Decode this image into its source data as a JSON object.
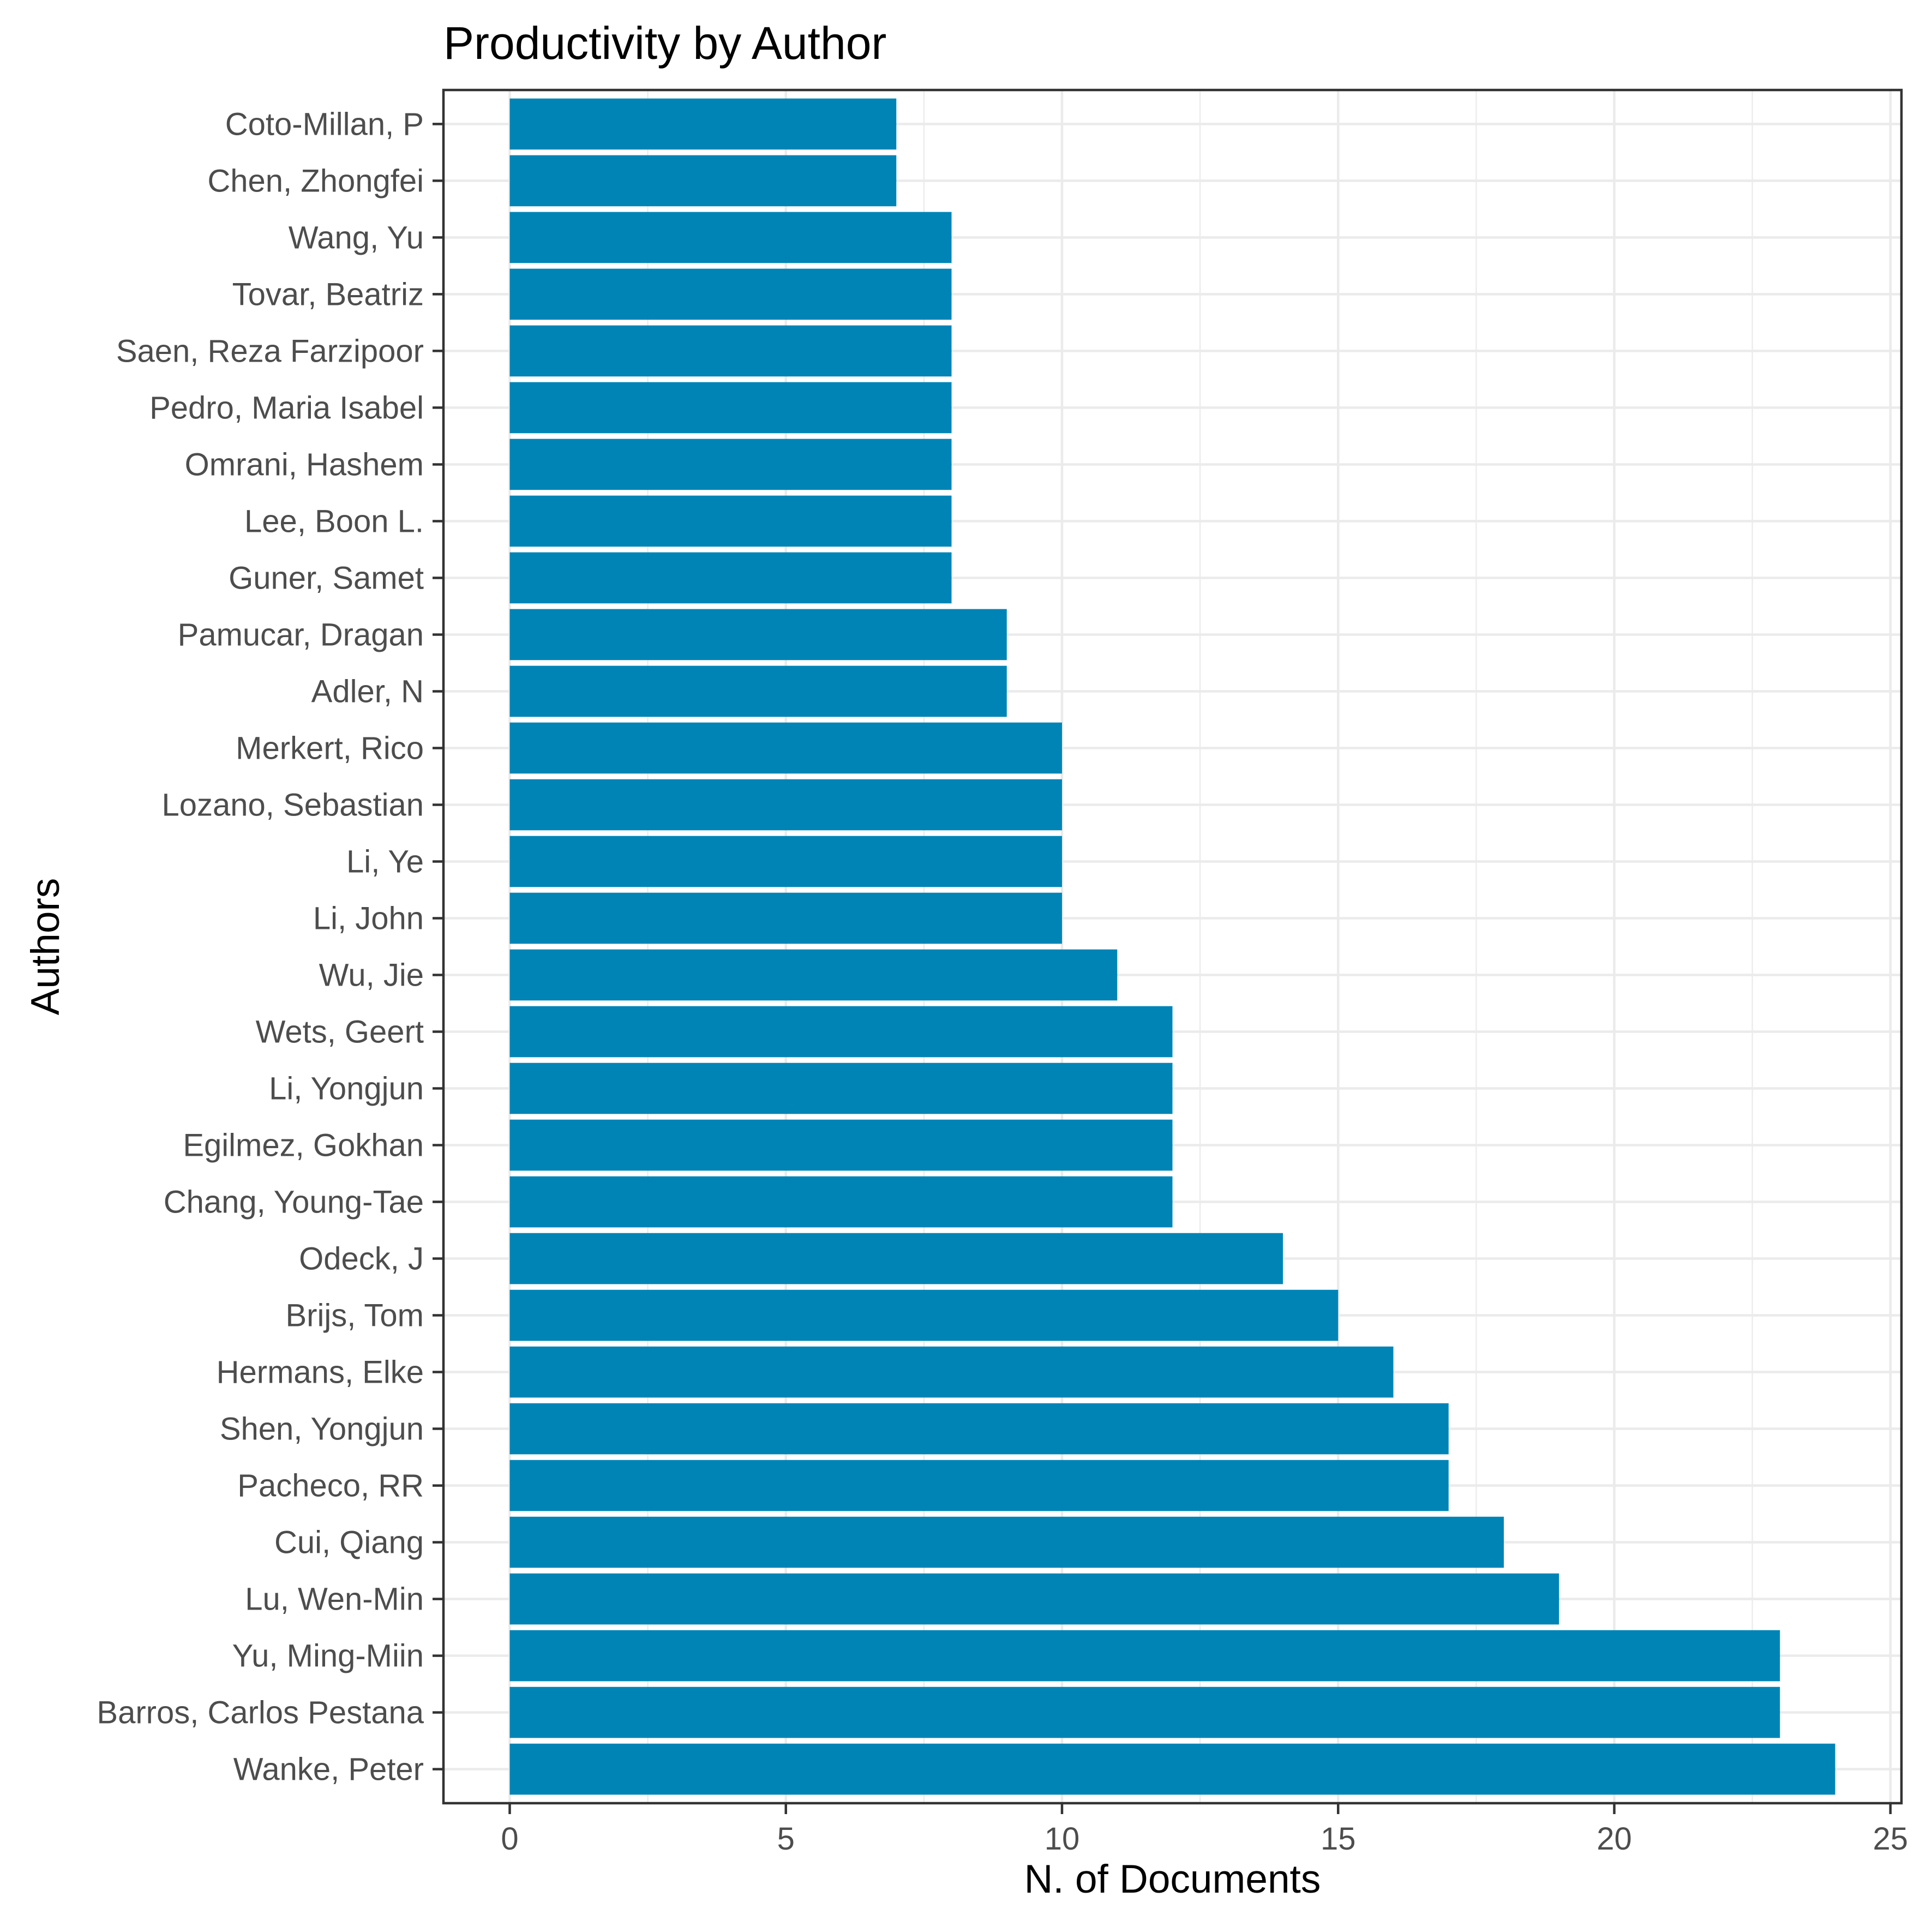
{
  "chart_data": {
    "type": "bar",
    "orientation": "horizontal",
    "title": "Productivity by Author",
    "xlabel": "N. of Documents",
    "ylabel": "Authors",
    "xlim": [
      -1.2,
      25.2
    ],
    "xticks": [
      0,
      5,
      10,
      15,
      20,
      25
    ],
    "xtick_labels": [
      "0",
      "5",
      "10",
      "15",
      "20",
      "25"
    ],
    "grid": true,
    "legend": "none",
    "bar_color": "#0084b6",
    "categories": [
      "Coto-Millan, P",
      "Chen, Zhongfei",
      "Wang, Yu",
      "Tovar, Beatriz",
      "Saen, Reza Farzipoor",
      "Pedro, Maria Isabel",
      "Omrani, Hashem",
      "Lee, Boon L.",
      "Guner, Samet",
      "Pamucar, Dragan",
      "Adler, N",
      "Merkert, Rico",
      "Lozano, Sebastian",
      "Li, Ye",
      "Li, John",
      "Wu, Jie",
      "Wets, Geert",
      "Li, Yongjun",
      "Egilmez, Gokhan",
      "Chang, Young-Tae",
      "Odeck, J",
      "Brijs, Tom",
      "Hermans, Elke",
      "Shen, Yongjun",
      "Pacheco, RR",
      "Cui, Qiang",
      "Lu, Wen-Min",
      "Yu, Ming-Miin",
      "Barros, Carlos Pestana",
      "Wanke, Peter"
    ],
    "values": [
      7,
      7,
      8,
      8,
      8,
      8,
      8,
      8,
      8,
      9,
      9,
      10,
      10,
      10,
      10,
      11,
      12,
      12,
      12,
      12,
      14,
      15,
      16,
      17,
      17,
      18,
      19,
      23,
      23,
      24
    ]
  }
}
